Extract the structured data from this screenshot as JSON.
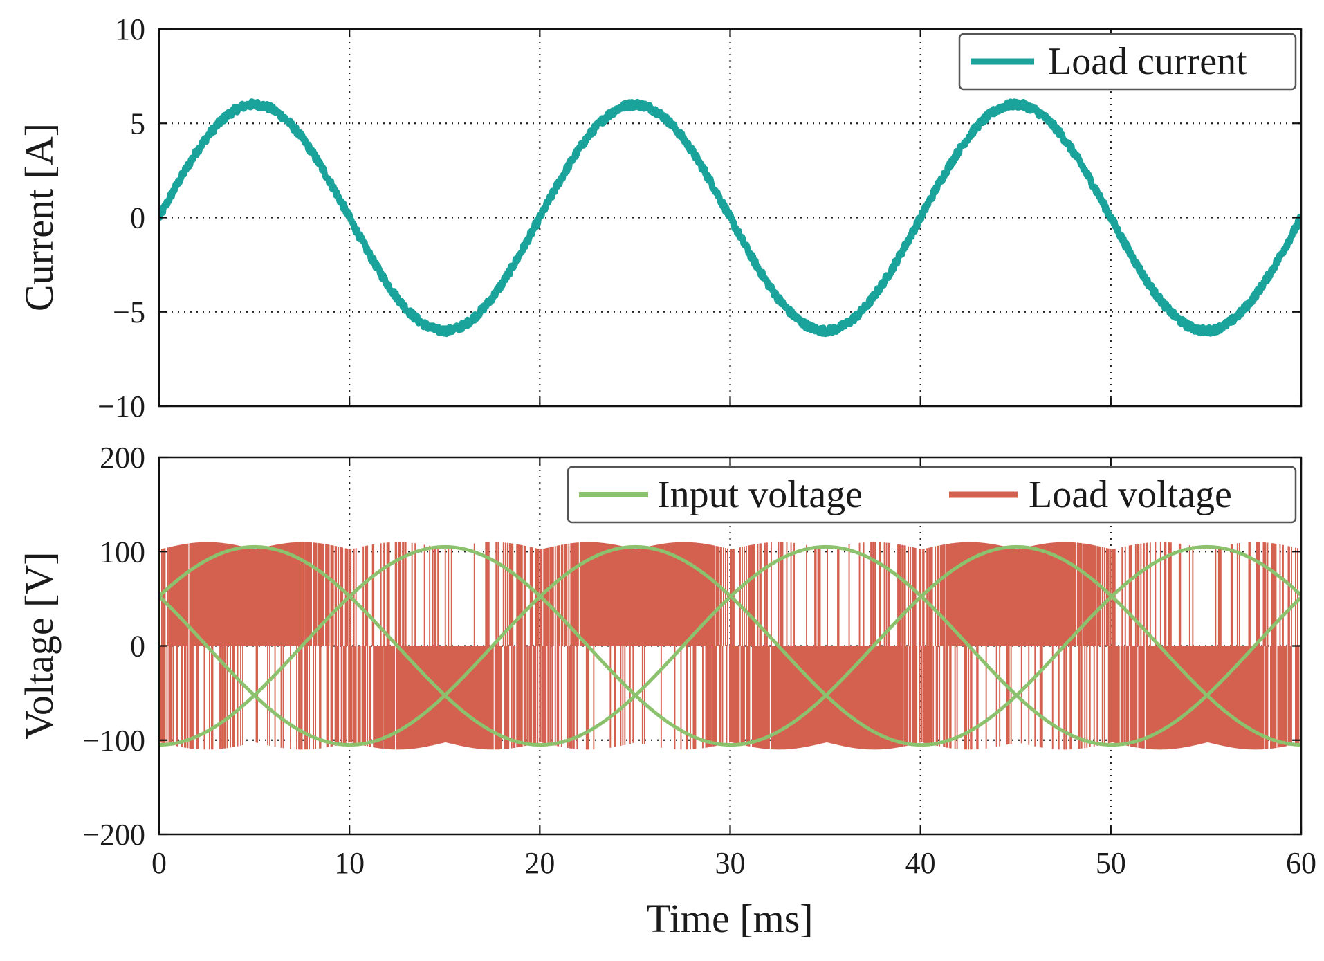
{
  "chart_data": [
    {
      "type": "line",
      "ylabel": "Current [A]",
      "xlim": [
        0,
        60
      ],
      "ylim": [
        -10,
        10
      ],
      "yticks": [
        10,
        5,
        0,
        -5,
        -10
      ],
      "ytick_labels": [
        "10",
        "5",
        "0",
        "−5",
        "−10"
      ],
      "grid": true,
      "legend_position": "top-right",
      "series": [
        {
          "name": "Load current",
          "color": "#1aa39a",
          "amplitude": 6,
          "frequency_hz": 50,
          "phase_deg": 0,
          "x": [
            0,
            5,
            10,
            15,
            20,
            25,
            30,
            35,
            40,
            45,
            50,
            55,
            60
          ],
          "y": [
            0,
            6,
            0,
            -6,
            0,
            6,
            0,
            -6,
            0,
            6,
            0,
            -6,
            0
          ]
        }
      ]
    },
    {
      "type": "line",
      "ylabel": "Voltage [V]",
      "xlabel": "Time [ms]",
      "xlim": [
        0,
        60
      ],
      "ylim": [
        -200,
        200
      ],
      "xticks": [
        0,
        10,
        20,
        30,
        40,
        50,
        60
      ],
      "xtick_labels": [
        "0",
        "10",
        "20",
        "30",
        "40",
        "50",
        "60"
      ],
      "yticks": [
        200,
        100,
        0,
        -100,
        -200
      ],
      "ytick_labels": [
        "200",
        "100",
        "0",
        "−100",
        "−200"
      ],
      "grid": true,
      "legend_position": "top-right",
      "series": [
        {
          "name": "Input voltage",
          "color": "#8cc26e",
          "type": "three-phase sinusoid",
          "amplitude": 105,
          "frequency_hz": 33.3,
          "phases_deg": [
            30,
            150,
            270
          ]
        },
        {
          "name": "Load voltage",
          "color": "#d46050",
          "type": "PWM switching",
          "envelope_peak": 110,
          "levels": [
            -110,
            110
          ]
        }
      ]
    }
  ]
}
